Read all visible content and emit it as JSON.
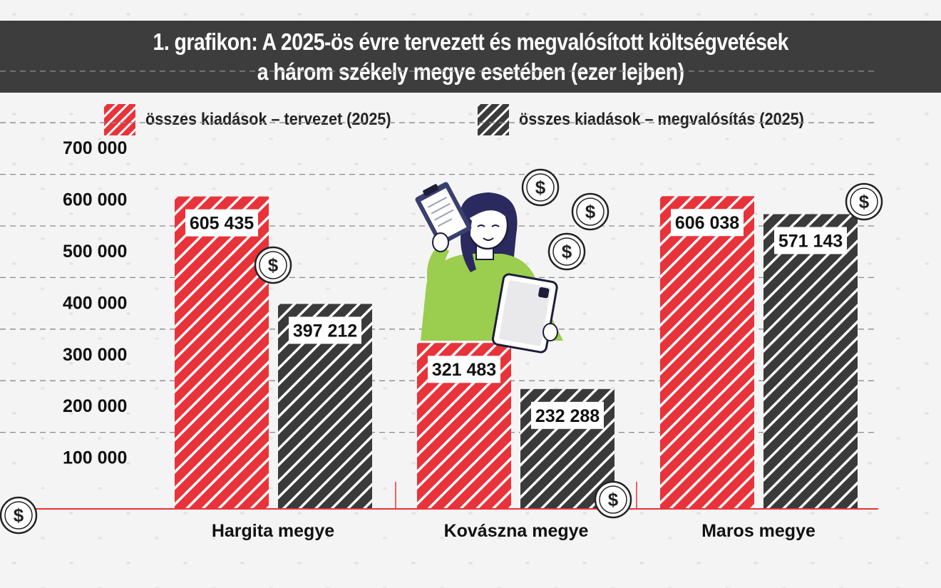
{
  "title": {
    "line1": "1. grafikon: A 2025-ös évre tervezett és megvalósított költségvetések",
    "line2": "a három székely megye esetében (ezer lejben)"
  },
  "colors": {
    "planned": "#e8333a",
    "actual": "#3a3a3a",
    "title_bg": "#3d3d3d"
  },
  "icons": [
    "dollar-coin-icon",
    "woman-with-clipboard-and-tablet-illustration"
  ],
  "chart_data": {
    "type": "bar",
    "categories": [
      "Hargita megye",
      "Kovászna megye",
      "Maros megye"
    ],
    "series": [
      {
        "name": "összes kiadások – tervezet (2025)",
        "values": [
          605435,
          321483,
          606038
        ],
        "value_labels": [
          "605 435",
          "321 483",
          "606 038"
        ]
      },
      {
        "name": "összes kiadások – megvalósítás (2025)",
        "values": [
          397212,
          232288,
          571143
        ],
        "value_labels": [
          "397 212",
          "232 288",
          "571 143"
        ]
      }
    ],
    "y_ticks": [
      100000,
      200000,
      300000,
      400000,
      500000,
      600000,
      700000
    ],
    "y_tick_labels": [
      "100 000",
      "200 000",
      "300 000",
      "400 000",
      "500 000",
      "600 000",
      "700 000"
    ],
    "ylim": [
      0,
      700000
    ],
    "grid": true,
    "legend_position": "top"
  }
}
